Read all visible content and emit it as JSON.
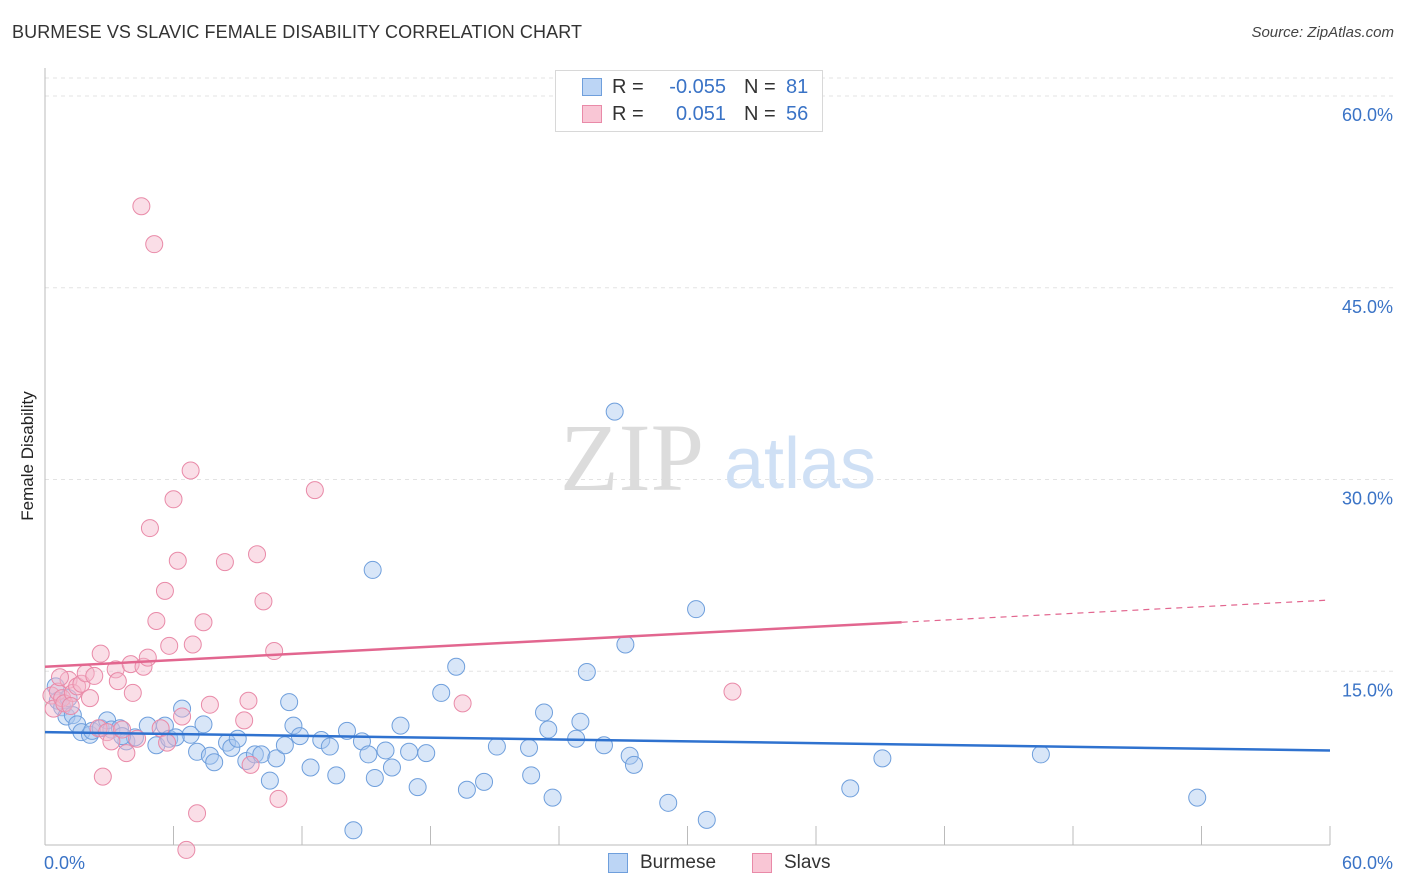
{
  "header": {
    "title": "BURMESE VS SLAVIC FEMALE DISABILITY CORRELATION CHART",
    "source": "Source: ZipAtlas.com"
  },
  "watermark": {
    "zip": "ZIP",
    "atlas": "atlas"
  },
  "legend_top": {
    "rows": [
      {
        "r_label": "R =",
        "r_value": "-0.055",
        "n_label": "N =",
        "n_value": "81"
      },
      {
        "r_label": "R =",
        "r_value": "0.051",
        "n_label": "N =",
        "n_value": "56"
      }
    ]
  },
  "legend_bottom": {
    "items": [
      "Burmese",
      "Slavs"
    ]
  },
  "colors": {
    "burmese_fill": "#a9c8f0",
    "burmese_stroke": "#6f9fdc",
    "burmese_line": "#2f72cf",
    "slavs_fill": "#f5b6c9",
    "slavs_stroke": "#e98aa8",
    "slavs_line": "#e2668f",
    "tick_text": "#3a73c6"
  },
  "chart_data": {
    "type": "scatter",
    "title": "BURMESE VS SLAVIC FEMALE DISABILITY CORRELATION CHART",
    "xlabel": "",
    "ylabel": "Female Disability",
    "xlim": [
      0,
      60
    ],
    "ylim": [
      0,
      60
    ],
    "x_tick_labels": [
      "0.0%",
      "60.0%"
    ],
    "y_ticks": [
      15,
      30,
      45,
      60
    ],
    "y_tick_labels": [
      "15.0%",
      "30.0%",
      "45.0%",
      "60.0%"
    ],
    "grid": true,
    "legend_position": "top-center",
    "series": [
      {
        "name": "Burmese",
        "r": -0.055,
        "n": 81,
        "trend": {
          "x": [
            0,
            60
          ],
          "y": [
            10.0,
            8.6
          ]
        },
        "points": [
          [
            0.5,
            13.5
          ],
          [
            0.6,
            12.4
          ],
          [
            0.8,
            11.9
          ],
          [
            1.0,
            11.2
          ],
          [
            1.1,
            12.6
          ],
          [
            1.3,
            11.3
          ],
          [
            1.5,
            10.6
          ],
          [
            1.7,
            10.0
          ],
          [
            2.1,
            9.8
          ],
          [
            2.2,
            10.1
          ],
          [
            2.6,
            10.3
          ],
          [
            2.9,
            10.9
          ],
          [
            3.1,
            10.2
          ],
          [
            3.5,
            10.3
          ],
          [
            3.8,
            9.3
          ],
          [
            4.2,
            9.6
          ],
          [
            4.8,
            10.5
          ],
          [
            5.2,
            9.0
          ],
          [
            5.6,
            10.5
          ],
          [
            5.8,
            9.5
          ],
          [
            6.4,
            11.8
          ],
          [
            6.8,
            9.8
          ],
          [
            7.1,
            8.5
          ],
          [
            7.4,
            10.6
          ],
          [
            7.7,
            8.2
          ],
          [
            7.9,
            7.7
          ],
          [
            8.5,
            9.2
          ],
          [
            8.7,
            8.8
          ],
          [
            9.0,
            9.5
          ],
          [
            9.4,
            7.8
          ],
          [
            9.8,
            8.3
          ],
          [
            10.1,
            8.3
          ],
          [
            10.5,
            6.3
          ],
          [
            10.8,
            8.0
          ],
          [
            11.2,
            9.0
          ],
          [
            11.4,
            12.3
          ],
          [
            11.6,
            10.5
          ],
          [
            11.9,
            9.7
          ],
          [
            12.4,
            7.3
          ],
          [
            12.9,
            9.4
          ],
          [
            13.3,
            8.9
          ],
          [
            13.6,
            6.7
          ],
          [
            14.1,
            10.1
          ],
          [
            14.4,
            2.5
          ],
          [
            14.8,
            9.3
          ],
          [
            15.1,
            8.3
          ],
          [
            15.4,
            6.5
          ],
          [
            15.9,
            8.6
          ],
          [
            16.2,
            7.3
          ],
          [
            16.6,
            10.5
          ],
          [
            17.0,
            8.5
          ],
          [
            17.4,
            5.8
          ],
          [
            17.8,
            8.4
          ],
          [
            18.5,
            13.0
          ],
          [
            19.2,
            15.0
          ],
          [
            19.7,
            5.6
          ],
          [
            20.5,
            6.2
          ],
          [
            21.1,
            8.9
          ],
          [
            22.6,
            8.8
          ],
          [
            22.7,
            6.7
          ],
          [
            23.3,
            11.5
          ],
          [
            23.5,
            10.2
          ],
          [
            23.7,
            5.0
          ],
          [
            24.8,
            9.5
          ],
          [
            25.0,
            10.8
          ],
          [
            25.3,
            14.6
          ],
          [
            26.1,
            9.0
          ],
          [
            26.6,
            34.5
          ],
          [
            27.1,
            16.7
          ],
          [
            27.3,
            8.2
          ],
          [
            27.5,
            7.5
          ],
          [
            29.1,
            4.6
          ],
          [
            30.4,
            19.4
          ],
          [
            30.9,
            3.3
          ],
          [
            15.3,
            22.4
          ],
          [
            37.6,
            5.7
          ],
          [
            39.1,
            8.0
          ],
          [
            46.5,
            8.3
          ],
          [
            53.8,
            5.0
          ],
          [
            3.6,
            9.7
          ],
          [
            6.1,
            9.6
          ]
        ]
      },
      {
        "name": "Slavs",
        "r": 0.051,
        "n": 56,
        "trend": {
          "x": [
            0,
            40
          ],
          "y": [
            15.0,
            18.4
          ]
        },
        "trend_extension": {
          "x": [
            40,
            60
          ],
          "y": [
            18.4,
            20.1
          ]
        },
        "points": [
          [
            0.3,
            12.8
          ],
          [
            0.4,
            11.8
          ],
          [
            0.6,
            13.1
          ],
          [
            0.8,
            12.6
          ],
          [
            0.9,
            12.2
          ],
          [
            1.1,
            14.0
          ],
          [
            1.3,
            13.0
          ],
          [
            1.5,
            13.5
          ],
          [
            1.7,
            13.7
          ],
          [
            1.9,
            14.5
          ],
          [
            2.1,
            12.6
          ],
          [
            2.3,
            14.3
          ],
          [
            2.5,
            10.3
          ],
          [
            2.6,
            16.0
          ],
          [
            2.7,
            6.6
          ],
          [
            2.9,
            10.0
          ],
          [
            3.1,
            9.3
          ],
          [
            3.3,
            14.8
          ],
          [
            3.4,
            13.9
          ],
          [
            3.6,
            10.2
          ],
          [
            3.8,
            8.4
          ],
          [
            4.0,
            15.2
          ],
          [
            4.1,
            13.0
          ],
          [
            4.3,
            9.5
          ],
          [
            4.5,
            50.2
          ],
          [
            4.6,
            15.0
          ],
          [
            4.8,
            15.7
          ],
          [
            4.9,
            25.6
          ],
          [
            5.1,
            47.3
          ],
          [
            5.2,
            18.5
          ],
          [
            5.4,
            10.3
          ],
          [
            5.6,
            20.8
          ],
          [
            5.7,
            9.2
          ],
          [
            5.8,
            16.6
          ],
          [
            6.0,
            27.8
          ],
          [
            6.2,
            23.1
          ],
          [
            6.4,
            11.2
          ],
          [
            6.6,
            1.0
          ],
          [
            6.8,
            30.0
          ],
          [
            6.9,
            16.7
          ],
          [
            7.1,
            3.8
          ],
          [
            7.4,
            18.4
          ],
          [
            7.7,
            12.1
          ],
          [
            8.4,
            23.0
          ],
          [
            9.3,
            10.9
          ],
          [
            9.5,
            12.4
          ],
          [
            9.6,
            7.5
          ],
          [
            9.9,
            23.6
          ],
          [
            10.2,
            20.0
          ],
          [
            10.7,
            16.2
          ],
          [
            10.9,
            4.9
          ],
          [
            12.6,
            28.5
          ],
          [
            19.5,
            12.2
          ],
          [
            32.1,
            13.1
          ],
          [
            1.2,
            12.0
          ],
          [
            0.7,
            14.2
          ]
        ]
      }
    ]
  }
}
